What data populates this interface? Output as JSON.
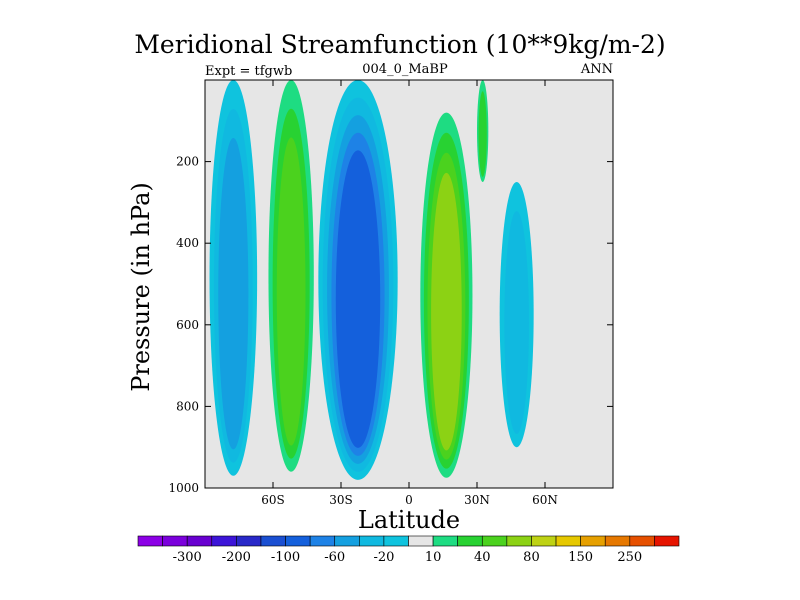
{
  "chart_data": {
    "type": "filled-contour",
    "title": "Meridional Streamfunction (10**9kg/m-2)",
    "left_label": "Expt = tfgwb",
    "center_label": "004_0_MaBP",
    "right_label": "ANN",
    "xlabel": "Latitude",
    "ylabel": "Pressure (in hPa)",
    "xlim": [
      -90,
      90
    ],
    "ylim": [
      1000,
      0
    ],
    "x_ticks": [
      {
        "value": -60,
        "label": "60S"
      },
      {
        "value": -30,
        "label": "30S"
      },
      {
        "value": 0,
        "label": "0"
      },
      {
        "value": 30,
        "label": "30N"
      },
      {
        "value": 60,
        "label": "60N"
      }
    ],
    "y_ticks": [
      {
        "value": 200,
        "label": "200"
      },
      {
        "value": 400,
        "label": "400"
      },
      {
        "value": 600,
        "label": "600"
      },
      {
        "value": 800,
        "label": "800"
      },
      {
        "value": 1000,
        "label": "1000"
      }
    ],
    "levels": [
      -350,
      -300,
      -250,
      -200,
      -150,
      -100,
      -80,
      -60,
      -40,
      -20,
      -10,
      10,
      20,
      40,
      60,
      80,
      100,
      150,
      200,
      250,
      300
    ],
    "colorbar_labels": [
      {
        "level": -300,
        "label": "-300"
      },
      {
        "level": -200,
        "label": "-200"
      },
      {
        "level": -100,
        "label": "-100"
      },
      {
        "level": -60,
        "label": "-60"
      },
      {
        "level": -20,
        "label": "-20"
      },
      {
        "level": 10,
        "label": "10"
      },
      {
        "level": 40,
        "label": "40"
      },
      {
        "level": 80,
        "label": "80"
      },
      {
        "level": 150,
        "label": "150"
      },
      {
        "level": 250,
        "label": "250"
      }
    ],
    "colorbar_colors": [
      "#8c00e6",
      "#7b00dc",
      "#6800d0",
      "#3c14d8",
      "#2828c8",
      "#1a4fd2",
      "#1460dc",
      "#1e82e6",
      "#14a0e0",
      "#10b9e0",
      "#0fc3de",
      "#e6e6e6",
      "#1edc82",
      "#28d232",
      "#4bd21e",
      "#8cd214",
      "#bed214",
      "#e6c800",
      "#e6a000",
      "#e67800",
      "#e65000",
      "#e61400"
    ],
    "cells": [
      {
        "name": "cell-sh-polar-negative",
        "lat": [
          -88,
          -67
        ],
        "p": [
          0,
          970
        ],
        "min": -40
      },
      {
        "name": "cell-sh-ferrel-positive",
        "lat": [
          -62,
          -42
        ],
        "p": [
          0,
          960
        ],
        "max": 40
      },
      {
        "name": "cell-sh-hadley-negative",
        "lat": [
          -40,
          -5
        ],
        "p": [
          0,
          980
        ],
        "min": -80
      },
      {
        "name": "cell-nh-hadley-positive",
        "lat": [
          5,
          28
        ],
        "p": [
          80,
          975
        ],
        "max": 60
      },
      {
        "name": "cell-nh-ferrel-negative",
        "lat": [
          40,
          55
        ],
        "p": [
          250,
          900
        ],
        "min": -20
      },
      {
        "name": "cell-nh-tropopause-positive",
        "lat": [
          30,
          35
        ],
        "p": [
          0,
          250
        ],
        "max": 20
      }
    ]
  }
}
